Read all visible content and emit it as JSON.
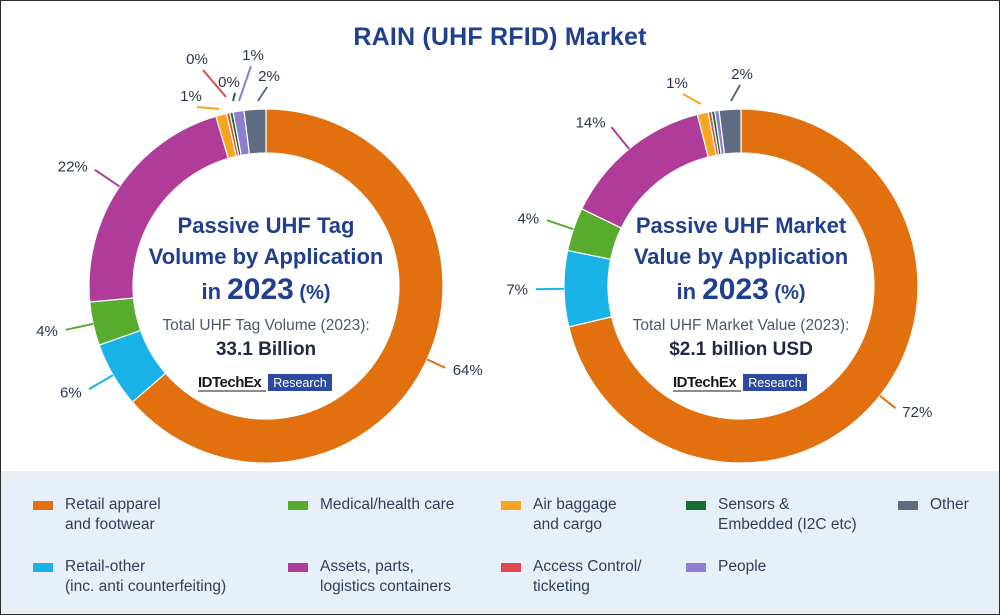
{
  "title": "RAIN (UHF RFID) Market",
  "chart_data": [
    {
      "type": "pie",
      "title_lines": [
        "Passive UHF Tag",
        "Volume by Application"
      ],
      "year_prefix": "in",
      "year": "2023",
      "year_suffix": "(%)",
      "total_label": "Total UHF Tag Volume (2023):",
      "total_value": "33.1 Billion",
      "brand": "IDTechEx",
      "brand_tag": "Research",
      "slices": [
        {
          "category": "Retail apparel and footwear",
          "value": 64,
          "label": "64%"
        },
        {
          "category": "Retail-other (inc. anti counterfeiting)",
          "value": 6,
          "label": "6%"
        },
        {
          "category": "Medical/health care",
          "value": 4,
          "label": "4%"
        },
        {
          "category": "Assets, parts, logistics containers",
          "value": 22,
          "label": "22%"
        },
        {
          "category": "Air baggage and cargo",
          "value": 1,
          "label": "1%"
        },
        {
          "category": "Access Control/ ticketing",
          "value": 0.3,
          "label": "0%"
        },
        {
          "category": "Sensors & Embedded (I2C etc)",
          "value": 0.3,
          "label": "0%"
        },
        {
          "category": "People",
          "value": 1,
          "label": "1%"
        },
        {
          "category": "Other",
          "value": 2,
          "label": "2%"
        }
      ]
    },
    {
      "type": "pie",
      "title_lines": [
        "Passive UHF Market",
        "Value by Application"
      ],
      "year_prefix": "in",
      "year": "2023",
      "year_suffix": "(%)",
      "total_label": "Total UHF Market Value (2023):",
      "total_value": "$2.1 billion USD",
      "brand": "IDTechEx",
      "brand_tag": "Research",
      "slices": [
        {
          "category": "Retail apparel and footwear",
          "value": 72,
          "label": "72%"
        },
        {
          "category": "Retail-other (inc. anti counterfeiting)",
          "value": 7,
          "label": "7%"
        },
        {
          "category": "Medical/health care",
          "value": 4,
          "label": "4%"
        },
        {
          "category": "Assets, parts, logistics containers",
          "value": 14,
          "label": "14%"
        },
        {
          "category": "Air baggage and cargo",
          "value": 1,
          "label": "1%"
        },
        {
          "category": "Access Control/ ticketing",
          "value": 0.3,
          "label": ""
        },
        {
          "category": "Sensors & Embedded (I2C etc)",
          "value": 0.3,
          "label": ""
        },
        {
          "category": "People",
          "value": 0.4,
          "label": ""
        },
        {
          "category": "Other",
          "value": 2,
          "label": "2%"
        }
      ]
    }
  ],
  "legend": [
    {
      "label": "Retail apparel\nand footwear",
      "color": "#e2700f"
    },
    {
      "label": "Medical/health care",
      "color": "#57ac2f"
    },
    {
      "label": "Air baggage\nand cargo",
      "color": "#f6a51f"
    },
    {
      "label": "Sensors &\nEmbedded (I2C etc)",
      "color": "#14712d"
    },
    {
      "label": "Other",
      "color": "#5f6b80"
    },
    {
      "label": "Retail-other\n(inc. anti counterfeiting)",
      "color": "#19b2e6"
    },
    {
      "label": "Assets, parts,\nlogistics containers",
      "color": "#b03c9a"
    },
    {
      "label": "Access Control/\nticketing",
      "color": "#e2474c"
    },
    {
      "label": "People",
      "color": "#8d7fd0"
    }
  ]
}
